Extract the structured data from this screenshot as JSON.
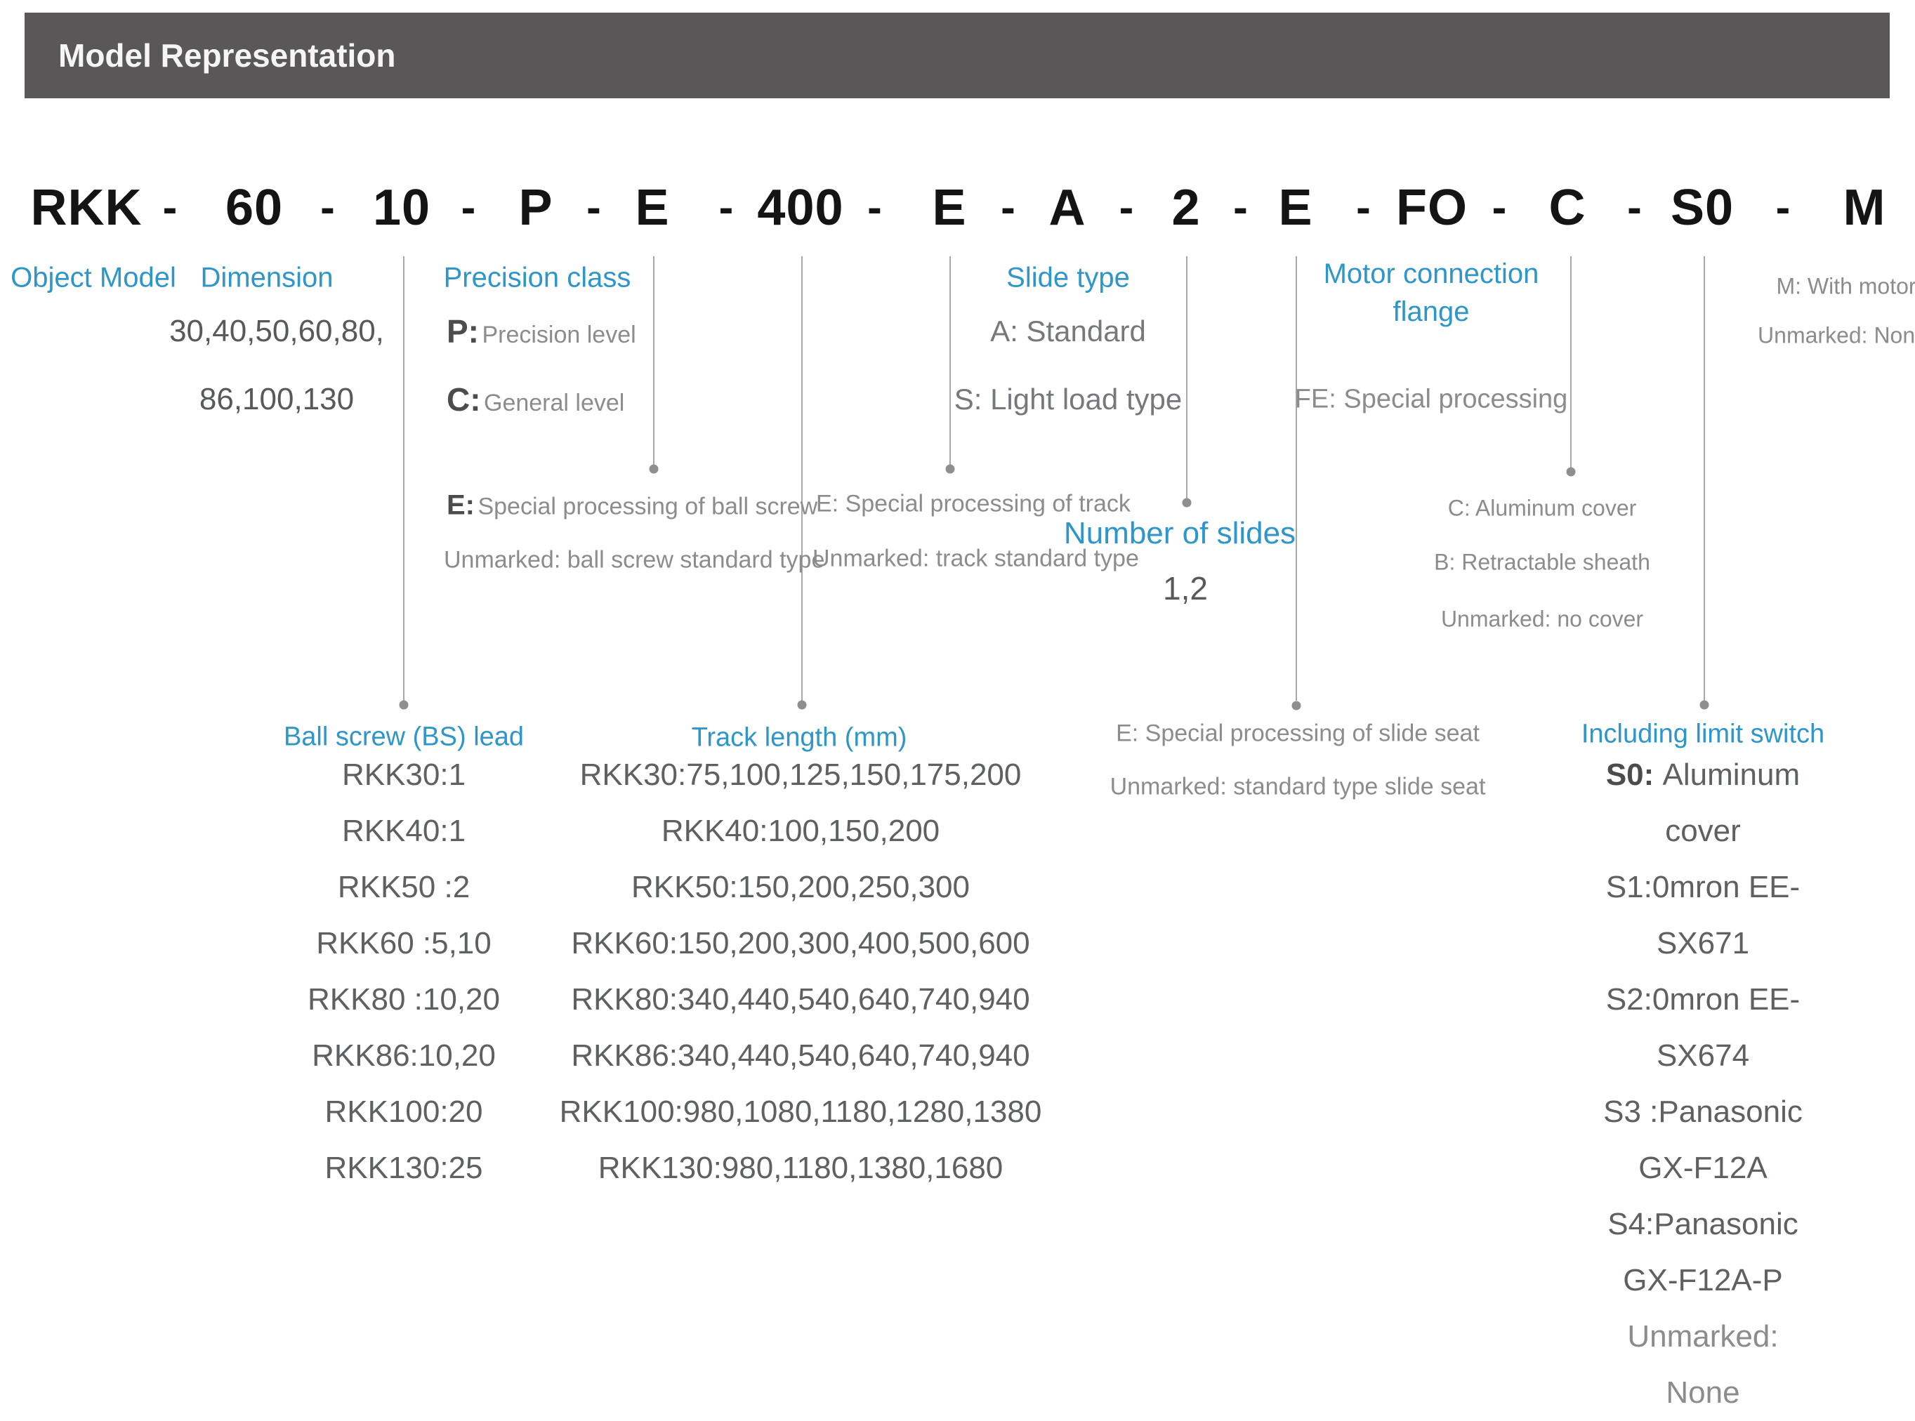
{
  "title_bar": {
    "title": "Model Representation"
  },
  "model_code": {
    "segments": [
      "RKK",
      "60",
      "10",
      "P",
      "E",
      "400",
      "E",
      "A",
      "2",
      "E",
      "FO",
      "C",
      "S0",
      "M"
    ],
    "separator": "-"
  },
  "colors": {
    "accent_blue": "#2E96C9",
    "titlebar_bg": "#595757",
    "leader_line_gray": "#A8A8A8",
    "text_dark": "#58595B",
    "text_light": "#8C8C8E"
  },
  "annotations": {
    "object_model": {
      "label": "Object Model"
    },
    "dimension": {
      "label": "Dimension",
      "line1": "30,40,50,60,80,",
      "line2": "86,100,130"
    },
    "precision": {
      "label": "Precision class",
      "p_prefix": "P:",
      "p_text": "Precision level",
      "c_prefix": "C:",
      "c_text": "General level"
    },
    "bs_processing": {
      "e_prefix": "E:",
      "e_text": "Special processing of ball screw",
      "unmarked": "Unmarked: ball screw standard type"
    },
    "track_processing": {
      "e_text": "E: Special processing of track",
      "unmarked": "Unmarked: track standard type"
    },
    "slide_type": {
      "label": "Slide type",
      "row1": "A: Standard",
      "row2": "S: Light load type"
    },
    "number_of_slides": {
      "label": "Number of slides",
      "values": "1,2"
    },
    "slide_seat": {
      "row1": "E: Special processing of slide seat",
      "row2": "Unmarked: standard type slide seat"
    },
    "motor_flange": {
      "line1": "Motor connection",
      "line2": "flange",
      "row": "FE: Special processing"
    },
    "cover": {
      "row1": "C: Aluminum cover",
      "row2": "B: Retractable sheath",
      "row3": "Unmarked: no cover"
    },
    "motor": {
      "row1": "M: With motor",
      "row2": "Unmarked: None"
    },
    "ball_screw_lead": {
      "label": "Ball screw (BS) lead",
      "items": [
        "RKK30:1",
        "RKK40:1",
        "RKK50 :2",
        "RKK60 :5,10",
        "RKK80 :10,20",
        "RKK86:10,20",
        "RKK100:20",
        "RKK130:25"
      ]
    },
    "track_length": {
      "label": "Track length (mm)",
      "items": [
        "RKK30:75,100,125,150,175,200",
        "RKK40:100,150,200",
        "RKK50:150,200,250,300",
        "RKK60:150,200,300,400,500,600",
        "RKK80:340,440,540,640,740,940",
        "RKK86:340,440,540,640,740,940",
        "RKK100:980,1080,1180,1280,1380",
        "RKK130:980,1180,1380,1680"
      ]
    },
    "limit_switch": {
      "label": "Including limit switch",
      "items": [
        {
          "prefix": "S0:",
          "text": "Aluminum cover"
        },
        {
          "text": "S1:0mron EE-SX671"
        },
        {
          "text": "S2:0mron EE-SX674"
        },
        {
          "text": "S3 :Panasonic GX-F12A"
        },
        {
          "text": "S4:Panasonic GX-F12A-P"
        },
        {
          "text": "Unmarked: None",
          "muted": true
        }
      ]
    }
  }
}
